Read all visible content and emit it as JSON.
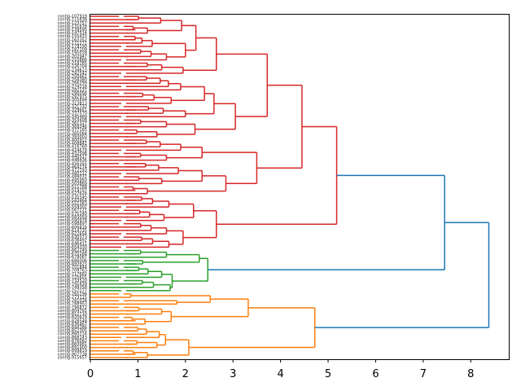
{
  "chart_data": {
    "type": "dendrogram",
    "orientation": "right",
    "title": "",
    "xlabel": "",
    "ylabel": "",
    "xlim": [
      0,
      8.8
    ],
    "xticks": [
      0,
      1,
      2,
      3,
      4,
      5,
      6,
      7,
      8
    ],
    "grid": false,
    "link_color_above_threshold": "#1f77b4",
    "cluster_colors": {
      "red": "#d62728",
      "green": "#2ca02c",
      "orange": "#ff7f0e"
    },
    "leaf_label_examples": [
      "contig-268331-methanex2",
      "contig-025360-hal3427b"
    ],
    "tree": {
      "h": 8.38,
      "color": "#1f77b4",
      "children": [
        {
          "h": 7.45,
          "color": "#1f77b4",
          "children": [
            {
              "h": 5.18,
              "color": "#d62728",
              "children": [
                {
                  "h": 4.45,
                  "color": "#d62728",
                  "children": [
                    {
                      "h": 3.72,
                      "color": "#d62728",
                      "children": [
                        {
                          "h": 2.65,
                          "color": "#d62728",
                          "children": [
                            {
                              "h": 2.22,
                              "color": "#d62728",
                              "children": [
                                {
                                  "h": 1.92,
                                  "color": "#d62728",
                                  "children": [
                                    {
                                      "leaves": 3,
                                      "h": 1.48
                                    },
                                    {
                                      "leaves": 3,
                                      "h": 1.2
                                    }
                                  ]
                                },
                                {
                                  "h": 2.0,
                                  "color": "#d62728",
                                  "children": [
                                    {
                                      "leaves": 4,
                                      "h": 1.3
                                    },
                                    {
                                      "leaves": 4,
                                      "h": 1.6
                                    }
                                  ]
                                }
                              ]
                            },
                            {
                              "leaves": 4,
                              "h": 1.95
                            }
                          ]
                        },
                        {
                          "h": 3.05,
                          "color": "#d62728",
                          "children": [
                            {
                              "h": 2.6,
                              "color": "#d62728",
                              "children": [
                                {
                                  "h": 2.4,
                                  "color": "#d62728",
                                  "children": [
                                    {
                                      "leaves": 5,
                                      "h": 1.9
                                    },
                                    {
                                      "leaves": 4,
                                      "h": 1.7
                                    }
                                  ]
                                },
                                {
                                  "leaves": 4,
                                  "h": 2.0
                                }
                              ]
                            },
                            {
                              "h": 2.2,
                              "color": "#d62728",
                              "children": [
                                {
                                  "leaves": 3,
                                  "h": 1.6
                                },
                                {
                                  "leaves": 3,
                                  "h": 1.4
                                }
                              ]
                            }
                          ]
                        }
                      ]
                    },
                    {
                      "h": 3.5,
                      "color": "#d62728",
                      "children": [
                        {
                          "h": 2.35,
                          "color": "#d62728",
                          "children": [
                            {
                              "leaves": 4,
                              "h": 1.9
                            },
                            {
                              "leaves": 3,
                              "h": 1.6
                            }
                          ]
                        },
                        {
                          "h": 2.85,
                          "color": "#d62728",
                          "children": [
                            {
                              "h": 2.35,
                              "color": "#d62728",
                              "children": [
                                {
                                  "leaves": 4,
                                  "h": 1.85
                                },
                                {
                                  "leaves": 3,
                                  "h": 1.5
                                }
                              ]
                            },
                            {
                              "leaves": 3,
                              "h": 1.2
                            }
                          ]
                        }
                      ]
                    }
                  ]
                },
                {
                  "h": 2.65,
                  "color": "#d62728",
                  "children": [
                    {
                      "h": 2.17,
                      "color": "#d62728",
                      "children": [
                        {
                          "leaves": 4,
                          "h": 1.65
                        },
                        {
                          "leaves": 4,
                          "h": 1.55
                        }
                      ]
                    },
                    {
                      "h": 1.95,
                      "color": "#d62728",
                      "children": [
                        {
                          "leaves": 4,
                          "h": 1.6
                        },
                        {
                          "leaves": 4,
                          "h": 1.65
                        }
                      ]
                    }
                  ]
                }
              ]
            },
            {
              "h": 2.47,
              "color": "#2ca02c",
              "children": [
                {
                  "h": 2.29,
                  "color": "#2ca02c",
                  "children": [
                    {
                      "leaves": 3,
                      "h": 1.6
                    },
                    {
                      "leaves": 2,
                      "h": 1.1
                    }
                  ]
                },
                {
                  "h": 1.72,
                  "color": "#2ca02c",
                  "children": [
                    {
                      "leaves": 4,
                      "h": 1.5
                    },
                    {
                      "leaves": 4,
                      "h": 1.68
                    }
                  ]
                }
              ]
            }
          ]
        },
        {
          "h": 4.72,
          "color": "#ff7f0e",
          "children": [
            {
              "h": 3.32,
              "color": "#ff7f0e",
              "children": [
                {
                  "h": 2.52,
                  "color": "#ff7f0e",
                  "children": [
                    {
                      "leaves": 2,
                      "h": 0.85
                    },
                    {
                      "leaves": 2,
                      "h": 1.82
                    }
                  ]
                },
                {
                  "h": 1.7,
                  "color": "#ff7f0e",
                  "children": [
                    {
                      "leaves": 3,
                      "h": 1.5
                    },
                    {
                      "leaves": 3,
                      "h": 1.15
                    }
                  ]
                }
              ]
            },
            {
              "h": 2.07,
              "color": "#ff7f0e",
              "children": [
                {
                  "h": 1.58,
                  "color": "#ff7f0e",
                  "children": [
                    {
                      "leaves": 4,
                      "h": 1.45
                    },
                    {
                      "leaves": 3,
                      "h": 1.4
                    }
                  ]
                },
                {
                  "leaves": 3,
                  "h": 1.2
                }
              ]
            }
          ]
        }
      ]
    }
  }
}
